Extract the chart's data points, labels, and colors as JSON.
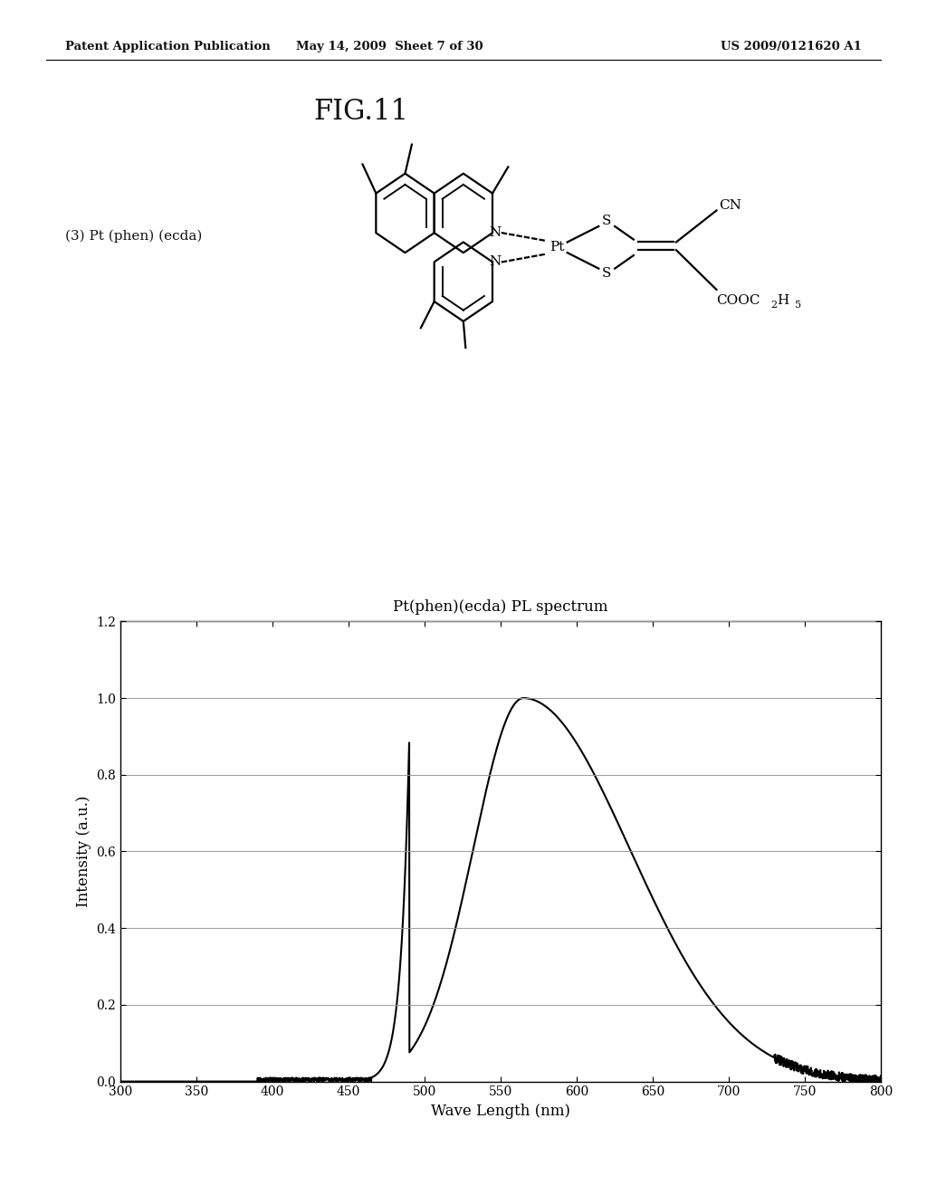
{
  "header_left": "Patent Application Publication",
  "header_center": "May 14, 2009  Sheet 7 of 30",
  "header_right": "US 2009/0121620 A1",
  "fig_label": "FIG.11",
  "compound_label": "(3) Pt (phen) (ecda)",
  "chart_title": "Pt(phen)(ecda) PL spectrum",
  "xlabel": "Wave Length (nm)",
  "ylabel": "Intensity (a.u.)",
  "xlim": [
    300,
    800
  ],
  "ylim": [
    0.0,
    1.2
  ],
  "xticks": [
    300,
    350,
    400,
    450,
    500,
    550,
    600,
    650,
    700,
    750,
    800
  ],
  "yticks": [
    0.0,
    0.2,
    0.4,
    0.6,
    0.8,
    1.0,
    1.2
  ],
  "background_color": "#ffffff",
  "line_color": "#000000"
}
